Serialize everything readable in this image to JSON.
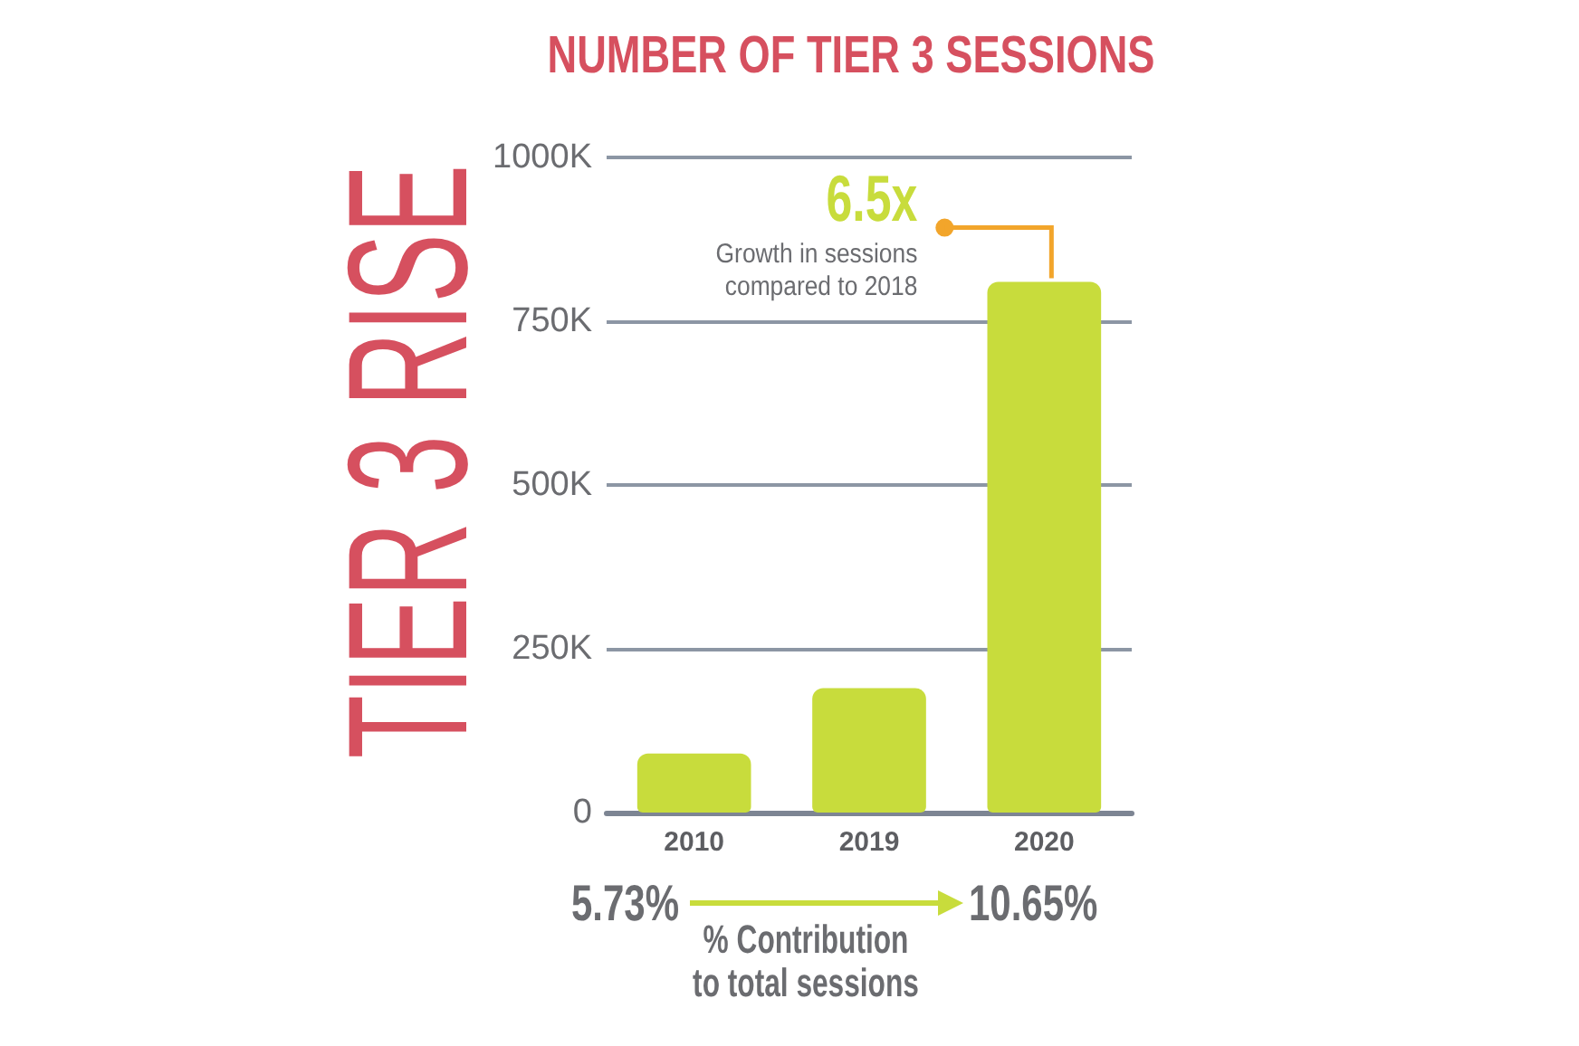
{
  "chart_data": {
    "type": "bar",
    "title": "TIER 3 RISE",
    "subtitle": "NUMBER OF TIER 3 SESSIONS",
    "categories": [
      "2010",
      "2019",
      "2020"
    ],
    "values": [
      90000,
      190000,
      810000
    ],
    "color": "#c8dc3c",
    "ylim": [
      0,
      1000000
    ],
    "yticks": [
      0,
      {
        "value": 250000,
        "label": "250K"
      },
      {
        "value": 500000,
        "label": "500K"
      },
      {
        "value": 750000,
        "label": "750K"
      },
      {
        "value": 1000000,
        "label": "1000K"
      }
    ],
    "grid": "y",
    "annotations": [
      {
        "text": "6.5x",
        "x": "2020",
        "y": 810000
      },
      "Growth in sessions compared to 2018",
      "5.73%",
      "10.65%",
      "% Contribution to total sessions"
    ]
  }
}
